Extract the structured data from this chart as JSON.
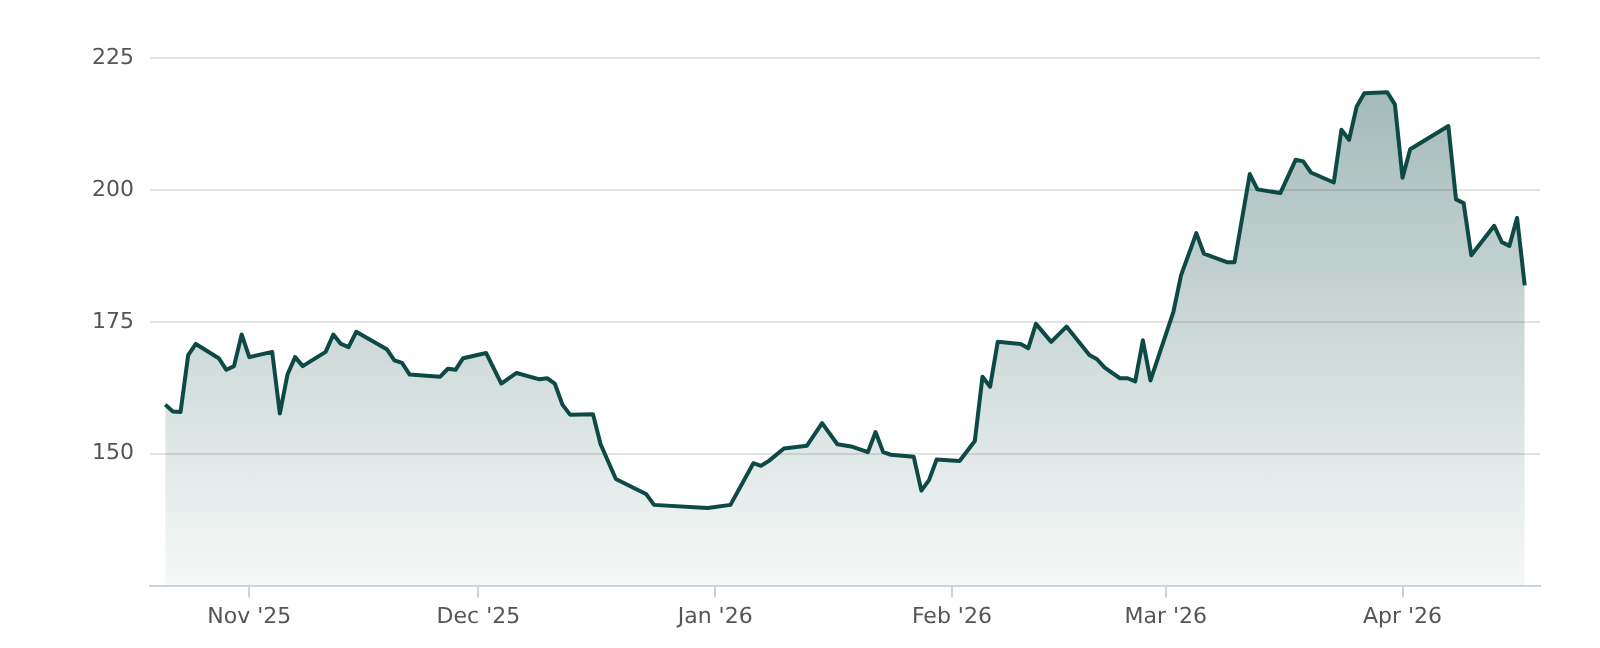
{
  "chart_data": {
    "type": "area",
    "x": [
      "2025-10-21",
      "2025-10-22",
      "2025-10-23",
      "2025-10-24",
      "2025-10-25",
      "2025-10-28",
      "2025-10-29",
      "2025-10-30",
      "2025-10-31",
      "2025-11-01",
      "2025-11-04",
      "2025-11-05",
      "2025-11-06",
      "2025-11-07",
      "2025-11-08",
      "2025-11-11",
      "2025-11-12",
      "2025-11-13",
      "2025-11-14",
      "2025-11-15",
      "2025-11-19",
      "2025-11-20",
      "2025-11-21",
      "2025-11-22",
      "2025-11-26",
      "2025-11-27",
      "2025-11-28",
      "2025-11-29",
      "2025-12-02",
      "2025-12-04",
      "2025-12-06",
      "2025-12-09",
      "2025-12-10",
      "2025-12-11",
      "2025-12-12",
      "2025-12-13",
      "2025-12-16",
      "2025-12-17",
      "2025-12-19",
      "2025-12-23",
      "2025-12-24",
      "2025-12-31",
      "2026-01-03",
      "2026-01-06",
      "2026-01-07",
      "2026-01-08",
      "2026-01-10",
      "2026-01-13",
      "2026-01-15",
      "2026-01-17",
      "2026-01-19",
      "2026-01-21",
      "2026-01-22",
      "2026-01-23",
      "2026-01-24",
      "2026-01-27",
      "2026-01-28",
      "2026-01-29",
      "2026-01-30",
      "2026-02-02",
      "2026-02-04",
      "2026-02-05",
      "2026-02-06",
      "2026-02-07",
      "2026-02-10",
      "2026-02-11",
      "2026-02-12",
      "2026-02-14",
      "2026-02-16",
      "2026-02-19",
      "2026-02-20",
      "2026-02-21",
      "2026-02-23",
      "2026-02-24",
      "2026-02-25",
      "2026-02-26",
      "2026-02-27",
      "2026-03-02",
      "2026-03-03",
      "2026-03-05",
      "2026-03-06",
      "2026-03-09",
      "2026-03-10",
      "2026-03-12",
      "2026-03-13",
      "2026-03-16",
      "2026-03-18",
      "2026-03-19",
      "2026-03-20",
      "2026-03-23",
      "2026-03-24",
      "2026-03-25",
      "2026-03-26",
      "2026-03-27",
      "2026-03-30",
      "2026-03-31",
      "2026-04-01",
      "2026-04-02",
      "2026-04-07",
      "2026-04-08",
      "2026-04-09",
      "2026-04-10",
      "2026-04-13",
      "2026-04-14",
      "2026-04-15",
      "2026-04-16",
      "2026-04-17"
    ],
    "series": [
      {
        "color": "#0e4a45",
        "values": [
          159.3,
          158.0,
          157.9,
          168.7,
          170.8,
          168.1,
          165.9,
          166.6,
          172.6,
          168.3,
          169.3,
          157.6,
          165.0,
          168.3,
          166.6,
          169.3,
          172.6,
          170.8,
          170.2,
          173.1,
          169.8,
          167.7,
          167.2,
          165.0,
          164.6,
          166.1,
          165.9,
          168.1,
          169.1,
          163.3,
          165.3,
          164.1,
          164.3,
          163.3,
          159.3,
          157.4,
          157.5,
          151.8,
          145.2,
          142.3,
          140.3,
          139.7,
          140.3,
          148.2,
          147.7,
          148.6,
          151.0,
          151.5,
          155.8,
          151.8,
          151.3,
          150.3,
          154.1,
          150.3,
          149.8,
          149.4,
          143.0,
          145.0,
          148.9,
          148.6,
          152.4,
          164.6,
          162.7,
          171.2,
          170.8,
          170.0,
          174.6,
          171.2,
          174.1,
          168.7,
          167.9,
          166.3,
          164.3,
          164.3,
          163.7,
          171.5,
          163.9,
          176.9,
          183.8,
          191.8,
          187.9,
          186.3,
          186.3,
          203.0,
          200.1,
          199.4,
          205.7,
          205.4,
          203.3,
          201.4,
          211.4,
          209.5,
          215.8,
          218.3,
          218.5,
          216.2,
          202.3,
          207.7,
          212.1,
          198.2,
          197.5,
          187.6,
          193.2,
          190.1,
          189.4,
          194.7,
          181.9
        ]
      }
    ],
    "xlim": [
      "2025-10-19",
      "2026-04-19"
    ],
    "xticks": [
      {
        "value": "2025-11-01",
        "label": "Nov '25"
      },
      {
        "value": "2025-12-01",
        "label": "Dec '25"
      },
      {
        "value": "2026-01-01",
        "label": "Jan '26"
      },
      {
        "value": "2026-02-01",
        "label": "Feb '26"
      },
      {
        "value": "2026-03-01",
        "label": "Mar '26"
      },
      {
        "value": "2026-04-01",
        "label": "Apr '26"
      }
    ],
    "ylim": [
      125,
      225
    ],
    "yticks": [
      150,
      175,
      200,
      225
    ],
    "grid": "y",
    "marker": "none",
    "line_style": "solid",
    "legend": false
  }
}
